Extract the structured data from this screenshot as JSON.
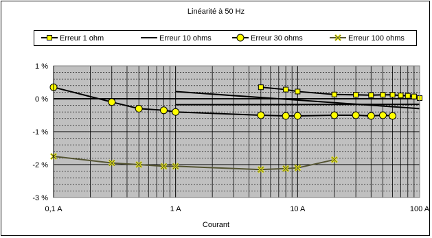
{
  "chart_data": {
    "type": "line",
    "title": "Linéarité à 50 Hz",
    "xlabel": "Courant",
    "ylabel": "",
    "x_scale": "log",
    "xlim": [
      0.1,
      100
    ],
    "ylim": [
      -3,
      1
    ],
    "x_tick_values": [
      0.1,
      1,
      10,
      100
    ],
    "x_tick_labels": [
      "0,1 A",
      "1 A",
      "10 A",
      "100 A"
    ],
    "y_tick_values": [
      1,
      0,
      -1,
      -2,
      -3
    ],
    "y_tick_labels": [
      "1 %",
      "0 %",
      "-1 %",
      "-2 %",
      "-3 %"
    ],
    "grid": true,
    "plot_background": "#c0c0c0",
    "legend_position": "top",
    "series": [
      {
        "name": "Erreur 1 ohm",
        "marker": "square",
        "color": "#000000",
        "marker_fill": "#ffff00",
        "x": [
          5,
          8,
          10,
          20,
          30,
          40,
          50,
          60,
          70,
          80,
          90,
          100
        ],
        "y": [
          0.35,
          0.28,
          0.22,
          0.13,
          0.12,
          0.11,
          0.12,
          0.12,
          0.1,
          0.09,
          0.07,
          0.02
        ]
      },
      {
        "name": "Erreur 10 ohms",
        "marker": "none",
        "color": "#000000",
        "x": [
          1,
          100
        ],
        "y": [
          0.22,
          -0.3
        ]
      },
      {
        "name": "Erreur 30 ohms",
        "marker": "circle",
        "color": "#000000",
        "marker_fill": "#ffff00",
        "x": [
          0.1,
          0.3,
          0.5,
          0.8,
          1,
          5,
          8,
          10,
          20,
          30,
          40,
          50,
          60
        ],
        "y": [
          0.35,
          -0.1,
          -0.3,
          -0.35,
          -0.4,
          -0.5,
          -0.52,
          -0.52,
          -0.5,
          -0.5,
          -0.52,
          -0.5,
          -0.52
        ]
      },
      {
        "name": "Erreur 100 ohms",
        "marker": "x",
        "color": "#555533",
        "marker_fill": "#ffff00",
        "x": [
          0.1,
          0.3,
          0.5,
          0.8,
          1,
          5,
          8,
          10,
          20
        ],
        "y": [
          -1.75,
          -1.95,
          -2.0,
          -2.05,
          -2.05,
          -2.15,
          -2.12,
          -2.1,
          -1.85
        ]
      }
    ],
    "extra_lines": [
      {
        "color": "#000000",
        "x": [
          0.1,
          100
        ],
        "y": [
          0.0,
          0.0
        ]
      },
      {
        "color": "#000000",
        "x": [
          1,
          100
        ],
        "y": [
          -0.18,
          -0.17
        ]
      }
    ]
  }
}
